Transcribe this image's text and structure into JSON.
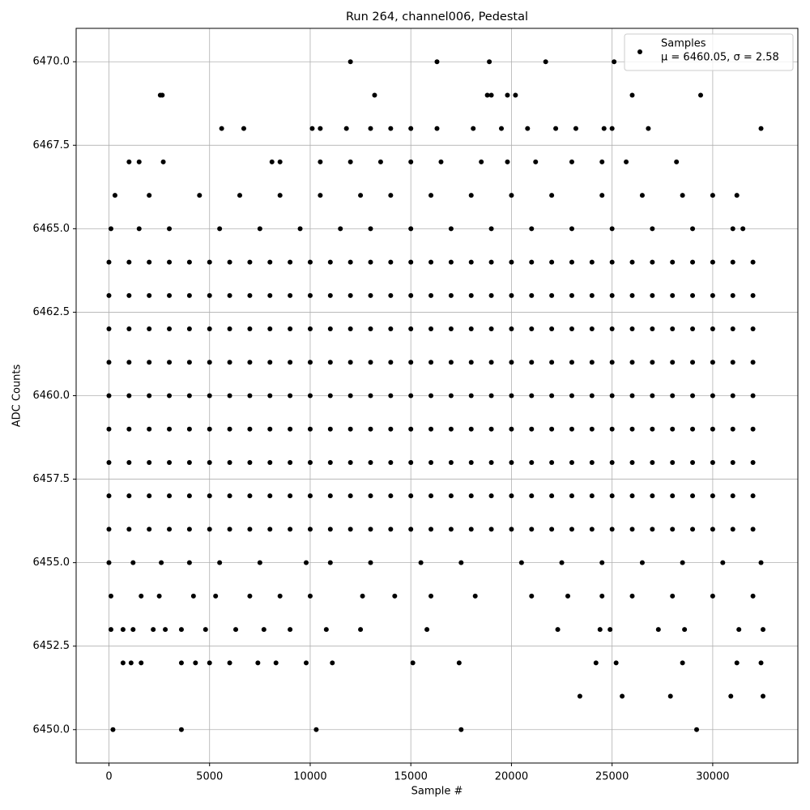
{
  "chart_data": {
    "type": "scatter",
    "title": "Run 264, channel006, Pedestal",
    "x_label": "Sample #",
    "y_label": "ADC Counts",
    "legend_note": "μ = 6460.05, σ = 2.58",
    "legend_position": "upper right",
    "grid": true,
    "xlim": [
      -1630,
      34230
    ],
    "ylim": [
      6449,
      6471
    ],
    "xticks": [
      0,
      5000,
      10000,
      15000,
      20000,
      25000,
      30000
    ],
    "yticks": [
      {
        "value": 6450,
        "label": "6450.0"
      },
      {
        "value": 6452.5,
        "label": "6452.5"
      },
      {
        "value": 6455,
        "label": "6455.0"
      },
      {
        "value": 6457.5,
        "label": "6457.5"
      },
      {
        "value": 6460,
        "label": "6460.0"
      },
      {
        "value": 6462.5,
        "label": "6462.5"
      },
      {
        "value": 6465,
        "label": "6465.0"
      },
      {
        "value": 6467.5,
        "label": "6467.5"
      },
      {
        "value": 6470,
        "label": "6470.0"
      }
    ],
    "series": [
      {
        "name": "Samples",
        "color": "#000000",
        "x": [
          0,
          1000,
          2000,
          3000,
          4000,
          5000,
          6000,
          7000,
          8000,
          9000,
          10000,
          11000,
          12000,
          13000,
          14000,
          15000,
          16000,
          17000,
          18000,
          19000,
          20000,
          21000,
          22000,
          23000,
          24000,
          25000,
          26000,
          27000,
          28000,
          29000,
          30000,
          31000,
          32000,
          0,
          1000,
          2000,
          3000,
          4000,
          5000,
          6000,
          7000,
          8000,
          9000,
          10000,
          11000,
          12000,
          13000,
          14000,
          15000,
          16000,
          17000,
          18000,
          19000,
          20000,
          21000,
          22000,
          23000,
          24000,
          25000,
          26000,
          27000,
          28000,
          29000,
          30000,
          31000,
          32000,
          0,
          1000,
          2000,
          3000,
          4000,
          5000,
          6000,
          7000,
          8000,
          9000,
          10000,
          11000,
          12000,
          13000,
          14000,
          15000,
          16000,
          17000,
          18000,
          19000,
          20000,
          21000,
          22000,
          23000,
          24000,
          25000,
          26000,
          27000,
          28000,
          29000,
          30000,
          31000,
          32000,
          0,
          1000,
          2000,
          3000,
          4000,
          5000,
          6000,
          7000,
          8000,
          9000,
          10000,
          11000,
          12000,
          13000,
          14000,
          15000,
          16000,
          17000,
          18000,
          19000,
          20000,
          21000,
          22000,
          23000,
          24000,
          25000,
          26000,
          27000,
          28000,
          29000,
          30000,
          31000,
          32000,
          0,
          1000,
          2000,
          3000,
          4000,
          5000,
          6000,
          7000,
          8000,
          9000,
          10000,
          11000,
          12000,
          13000,
          14000,
          15000,
          16000,
          17000,
          18000,
          19000,
          20000,
          21000,
          22000,
          23000,
          24000,
          25000,
          26000,
          27000,
          28000,
          29000,
          30000,
          31000,
          32000,
          0,
          1000,
          2000,
          3000,
          4000,
          5000,
          6000,
          7000,
          8000,
          9000,
          10000,
          11000,
          12000,
          13000,
          14000,
          15000,
          16000,
          17000,
          18000,
          19000,
          20000,
          21000,
          22000,
          23000,
          24000,
          25000,
          26000,
          27000,
          28000,
          29000,
          30000,
          31000,
          32000,
          0,
          1000,
          2000,
          3000,
          4000,
          5000,
          6000,
          7000,
          8000,
          9000,
          10000,
          11000,
          12000,
          13000,
          14000,
          15000,
          16000,
          17000,
          18000,
          19000,
          20000,
          21000,
          22000,
          23000,
          24000,
          25000,
          26000,
          27000,
          28000,
          29000,
          30000,
          31000,
          32000,
          0,
          1000,
          2000,
          3000,
          4000,
          5000,
          6000,
          7000,
          8000,
          9000,
          10000,
          11000,
          12000,
          13000,
          14000,
          15000,
          16000,
          17000,
          18000,
          19000,
          20000,
          21000,
          22000,
          23000,
          24000,
          25000,
          26000,
          27000,
          28000,
          29000,
          30000,
          31000,
          32000,
          0,
          1000,
          2000,
          3000,
          4000,
          5000,
          6000,
          7000,
          8000,
          9000,
          10000,
          11000,
          12000,
          13000,
          14000,
          15000,
          16000,
          17000,
          18000,
          19000,
          20000,
          21000,
          22000,
          23000,
          24000,
          25000,
          26000,
          27000,
          28000,
          29000,
          30000,
          31000,
          32000,
          100,
          1500,
          3000,
          5500,
          7500,
          9500,
          11500,
          13000,
          15000,
          17000,
          19000,
          21000,
          23000,
          25000,
          27000,
          29000,
          31000,
          31500,
          300,
          2000,
          4500,
          6500,
          8500,
          10500,
          12500,
          14000,
          16000,
          18000,
          20000,
          22000,
          24500,
          26500,
          28500,
          30000,
          31200,
          1000,
          1500,
          2700,
          8100,
          8500,
          10500,
          12000,
          13500,
          15000,
          16500,
          18500,
          19800,
          21200,
          23000,
          24500,
          25700,
          28200,
          5600,
          6700,
          10100,
          10500,
          11800,
          13000,
          14000,
          15000,
          16300,
          18100,
          19500,
          20800,
          22200,
          23200,
          24600,
          25000,
          26800,
          32400,
          2550,
          2650,
          13200,
          18800,
          19000,
          19800,
          20200,
          26000,
          29400,
          12000,
          16300,
          18900,
          21700,
          25100,
          0,
          1200,
          2600,
          4000,
          5500,
          7500,
          9800,
          11000,
          13000,
          15500,
          17500,
          20500,
          22500,
          24500,
          26500,
          28500,
          30500,
          32400,
          100,
          1600,
          2500,
          4200,
          5300,
          7000,
          8500,
          10000,
          12600,
          14200,
          16000,
          18200,
          21000,
          22800,
          24500,
          26000,
          28000,
          30000,
          32000,
          100,
          700,
          1200,
          2200,
          2800,
          3600,
          4800,
          6300,
          7700,
          9000,
          10800,
          12500,
          15800,
          22300,
          24400,
          24900,
          27300,
          28600,
          31300,
          32500,
          700,
          1100,
          1600,
          3600,
          4300,
          5000,
          6000,
          7400,
          8300,
          9800,
          11100,
          15100,
          17400,
          24200,
          25200,
          28500,
          31200,
          32400,
          23400,
          25500,
          27900,
          30900,
          32500,
          200,
          3600,
          10300,
          17500,
          29200
        ],
        "values": [
          6456,
          6456,
          6456,
          6456,
          6456,
          6456,
          6456,
          6456,
          6456,
          6456,
          6456,
          6456,
          6456,
          6456,
          6456,
          6456,
          6456,
          6456,
          6456,
          6456,
          6456,
          6456,
          6456,
          6456,
          6456,
          6456,
          6456,
          6456,
          6456,
          6456,
          6456,
          6456,
          6456,
          6457,
          6457,
          6457,
          6457,
          6457,
          6457,
          6457,
          6457,
          6457,
          6457,
          6457,
          6457,
          6457,
          6457,
          6457,
          6457,
          6457,
          6457,
          6457,
          6457,
          6457,
          6457,
          6457,
          6457,
          6457,
          6457,
          6457,
          6457,
          6457,
          6457,
          6457,
          6457,
          6457,
          6458,
          6458,
          6458,
          6458,
          6458,
          6458,
          6458,
          6458,
          6458,
          6458,
          6458,
          6458,
          6458,
          6458,
          6458,
          6458,
          6458,
          6458,
          6458,
          6458,
          6458,
          6458,
          6458,
          6458,
          6458,
          6458,
          6458,
          6458,
          6458,
          6458,
          6458,
          6458,
          6458,
          6459,
          6459,
          6459,
          6459,
          6459,
          6459,
          6459,
          6459,
          6459,
          6459,
          6459,
          6459,
          6459,
          6459,
          6459,
          6459,
          6459,
          6459,
          6459,
          6459,
          6459,
          6459,
          6459,
          6459,
          6459,
          6459,
          6459,
          6459,
          6459,
          6459,
          6459,
          6459,
          6459,
          6460,
          6460,
          6460,
          6460,
          6460,
          6460,
          6460,
          6460,
          6460,
          6460,
          6460,
          6460,
          6460,
          6460,
          6460,
          6460,
          6460,
          6460,
          6460,
          6460,
          6460,
          6460,
          6460,
          6460,
          6460,
          6460,
          6460,
          6460,
          6460,
          6460,
          6460,
          6460,
          6460,
          6461,
          6461,
          6461,
          6461,
          6461,
          6461,
          6461,
          6461,
          6461,
          6461,
          6461,
          6461,
          6461,
          6461,
          6461,
          6461,
          6461,
          6461,
          6461,
          6461,
          6461,
          6461,
          6461,
          6461,
          6461,
          6461,
          6461,
          6461,
          6461,
          6461,
          6461,
          6461,
          6461,
          6462,
          6462,
          6462,
          6462,
          6462,
          6462,
          6462,
          6462,
          6462,
          6462,
          6462,
          6462,
          6462,
          6462,
          6462,
          6462,
          6462,
          6462,
          6462,
          6462,
          6462,
          6462,
          6462,
          6462,
          6462,
          6462,
          6462,
          6462,
          6462,
          6462,
          6462,
          6462,
          6462,
          6463,
          6463,
          6463,
          6463,
          6463,
          6463,
          6463,
          6463,
          6463,
          6463,
          6463,
          6463,
          6463,
          6463,
          6463,
          6463,
          6463,
          6463,
          6463,
          6463,
          6463,
          6463,
          6463,
          6463,
          6463,
          6463,
          6463,
          6463,
          6463,
          6463,
          6463,
          6463,
          6463,
          6464,
          6464,
          6464,
          6464,
          6464,
          6464,
          6464,
          6464,
          6464,
          6464,
          6464,
          6464,
          6464,
          6464,
          6464,
          6464,
          6464,
          6464,
          6464,
          6464,
          6464,
          6464,
          6464,
          6464,
          6464,
          6464,
          6464,
          6464,
          6464,
          6464,
          6464,
          6464,
          6464,
          6465,
          6465,
          6465,
          6465,
          6465,
          6465,
          6465,
          6465,
          6465,
          6465,
          6465,
          6465,
          6465,
          6465,
          6465,
          6465,
          6465,
          6465,
          6466,
          6466,
          6466,
          6466,
          6466,
          6466,
          6466,
          6466,
          6466,
          6466,
          6466,
          6466,
          6466,
          6466,
          6466,
          6466,
          6466,
          6467,
          6467,
          6467,
          6467,
          6467,
          6467,
          6467,
          6467,
          6467,
          6467,
          6467,
          6467,
          6467,
          6467,
          6467,
          6467,
          6467,
          6468,
          6468,
          6468,
          6468,
          6468,
          6468,
          6468,
          6468,
          6468,
          6468,
          6468,
          6468,
          6468,
          6468,
          6468,
          6468,
          6468,
          6468,
          6469,
          6469,
          6469,
          6469,
          6469,
          6469,
          6469,
          6469,
          6469,
          6470,
          6470,
          6470,
          6470,
          6470,
          6455,
          6455,
          6455,
          6455,
          6455,
          6455,
          6455,
          6455,
          6455,
          6455,
          6455,
          6455,
          6455,
          6455,
          6455,
          6455,
          6455,
          6455,
          6454,
          6454,
          6454,
          6454,
          6454,
          6454,
          6454,
          6454,
          6454,
          6454,
          6454,
          6454,
          6454,
          6454,
          6454,
          6454,
          6454,
          6454,
          6454,
          6453,
          6453,
          6453,
          6453,
          6453,
          6453,
          6453,
          6453,
          6453,
          6453,
          6453,
          6453,
          6453,
          6453,
          6453,
          6453,
          6453,
          6453,
          6453,
          6453,
          6452,
          6452,
          6452,
          6452,
          6452,
          6452,
          6452,
          6452,
          6452,
          6452,
          6452,
          6452,
          6452,
          6452,
          6452,
          6452,
          6452,
          6452,
          6451,
          6451,
          6451,
          6451,
          6451,
          6450,
          6450,
          6450,
          6450,
          6450
        ]
      }
    ]
  }
}
